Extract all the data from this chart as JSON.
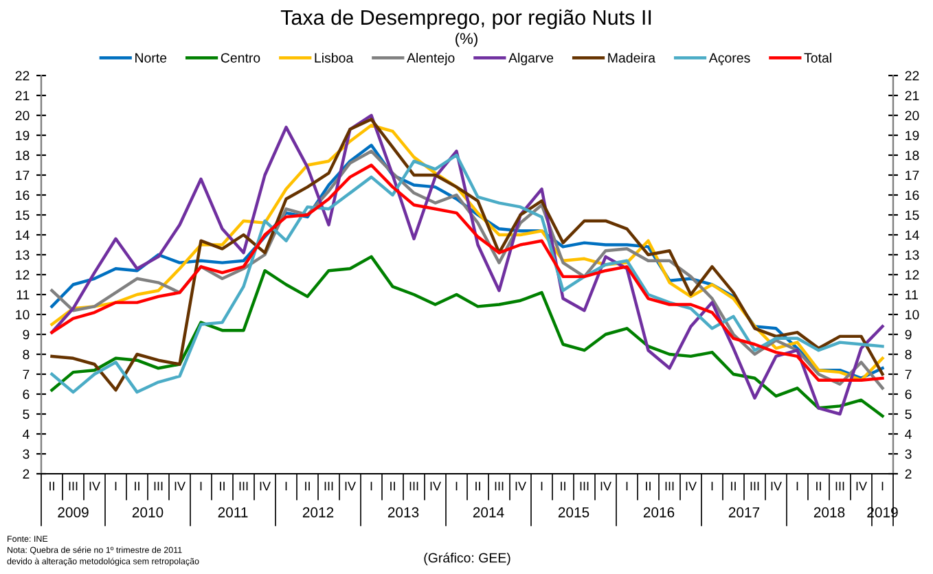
{
  "chart_data": {
    "type": "line",
    "title": "Taxa de Desemprego, por região Nuts II",
    "subtitle": "(%)",
    "categories": [
      "II",
      "III",
      "IV",
      "I",
      "II",
      "III",
      "IV",
      "I",
      "II",
      "III",
      "IV",
      "I",
      "II",
      "III",
      "IV",
      "I",
      "II",
      "III",
      "IV",
      "I",
      "II",
      "III",
      "IV",
      "I",
      "II",
      "III",
      "IV",
      "I",
      "II",
      "III",
      "IV",
      "I",
      "II",
      "III",
      "IV",
      "I",
      "II",
      "III",
      "IV",
      "I"
    ],
    "series": [
      {
        "name": "Norte",
        "color": "#0070c0",
        "values": [
          10.4,
          11.5,
          11.8,
          12.3,
          12.2,
          13.0,
          12.6,
          12.7,
          12.6,
          12.7,
          13.9,
          15.1,
          14.9,
          16.5,
          17.7,
          18.5,
          17.0,
          16.5,
          16.4,
          15.8,
          15.0,
          14.3,
          14.2,
          14.2,
          13.4,
          13.6,
          13.5,
          13.5,
          13.4,
          11.7,
          11.8,
          11.5,
          10.9,
          9.4,
          9.3,
          8.3,
          7.2,
          7.2,
          6.8,
          7.3
        ]
      },
      {
        "name": "Centro",
        "color": "#008000",
        "values": [
          6.2,
          7.1,
          7.2,
          7.8,
          7.7,
          7.3,
          7.5,
          9.6,
          9.2,
          9.2,
          12.2,
          11.5,
          10.9,
          12.2,
          12.3,
          12.9,
          11.4,
          11.0,
          10.5,
          11.0,
          10.4,
          10.5,
          10.7,
          11.1,
          8.5,
          8.2,
          9.0,
          9.3,
          8.4,
          8.0,
          7.9,
          8.1,
          7.0,
          6.8,
          5.9,
          6.3,
          5.3,
          5.4,
          5.7,
          4.9
        ]
      },
      {
        "name": "Lisboa",
        "color": "#ffc000",
        "values": [
          9.5,
          10.3,
          10.4,
          10.6,
          11.0,
          11.2,
          12.3,
          13.5,
          13.5,
          14.7,
          14.6,
          16.3,
          17.5,
          17.7,
          18.7,
          19.5,
          19.2,
          17.9,
          17.1,
          16.4,
          15.1,
          14.0,
          14.0,
          14.2,
          12.7,
          12.8,
          12.5,
          12.6,
          13.7,
          11.6,
          10.9,
          11.5,
          10.8,
          9.4,
          8.3,
          8.6,
          7.2,
          7.1,
          6.7,
          7.8
        ]
      },
      {
        "name": "Alentejo",
        "color": "#808080",
        "values": [
          11.2,
          10.2,
          10.4,
          11.1,
          11.8,
          11.6,
          11.1,
          12.4,
          11.8,
          12.3,
          13.0,
          15.3,
          15.0,
          16.2,
          17.6,
          18.2,
          17.1,
          16.1,
          15.6,
          16.0,
          14.6,
          12.6,
          14.6,
          15.5,
          12.6,
          11.9,
          13.2,
          13.3,
          12.7,
          12.7,
          11.9,
          10.8,
          9.0,
          8.0,
          8.7,
          8.2,
          7.0,
          6.5,
          7.6,
          6.3
        ]
      },
      {
        "name": "Algarve",
        "color": "#7030a0",
        "values": [
          9.1,
          10.3,
          12.1,
          13.8,
          12.3,
          12.9,
          14.5,
          16.8,
          14.3,
          13.1,
          17.0,
          19.4,
          17.4,
          14.5,
          19.3,
          20.0,
          17.0,
          13.8,
          16.9,
          18.2,
          13.5,
          11.2,
          15.0,
          16.3,
          10.8,
          10.2,
          12.9,
          12.3,
          8.2,
          7.3,
          9.4,
          10.6,
          8.3,
          5.8,
          7.9,
          8.2,
          5.3,
          5.0,
          8.3,
          9.4
        ]
      },
      {
        "name": "Madeira",
        "color": "#663300",
        "values": [
          7.9,
          7.8,
          7.5,
          6.2,
          8.0,
          7.7,
          7.5,
          13.7,
          13.3,
          14.0,
          13.1,
          15.8,
          16.4,
          17.1,
          19.3,
          19.8,
          18.4,
          17.0,
          17.0,
          16.4,
          15.7,
          13.1,
          15.0,
          15.7,
          13.6,
          14.7,
          14.7,
          14.3,
          13.0,
          13.2,
          11.0,
          12.4,
          11.1,
          9.3,
          8.9,
          9.1,
          8.3,
          8.9,
          8.9,
          7.0
        ]
      },
      {
        "name": "Açores",
        "color": "#4bacc6",
        "values": [
          7.0,
          6.1,
          7.0,
          7.6,
          6.1,
          6.6,
          6.9,
          9.5,
          9.6,
          11.4,
          14.7,
          13.7,
          15.4,
          15.3,
          16.1,
          16.9,
          16.0,
          17.7,
          17.3,
          18.0,
          15.9,
          15.6,
          15.4,
          14.9,
          11.2,
          11.9,
          12.5,
          12.7,
          11.0,
          10.6,
          10.3,
          9.3,
          9.9,
          8.2,
          8.8,
          8.8,
          8.2,
          8.6,
          8.5,
          8.4
        ]
      },
      {
        "name": "Total",
        "color": "#ff0000",
        "values": [
          9.1,
          9.8,
          10.1,
          10.6,
          10.6,
          10.9,
          11.1,
          12.4,
          12.1,
          12.4,
          14.0,
          14.9,
          15.0,
          15.8,
          16.9,
          17.5,
          16.4,
          15.5,
          15.3,
          15.1,
          13.9,
          13.1,
          13.5,
          13.7,
          11.9,
          11.9,
          12.2,
          12.4,
          10.8,
          10.5,
          10.5,
          10.1,
          8.8,
          8.5,
          8.1,
          7.9,
          6.7,
          6.7,
          6.7,
          6.8
        ]
      }
    ],
    "ylim": [
      2,
      22
    ],
    "yticks": [
      2,
      3,
      4,
      5,
      6,
      7,
      8,
      9,
      10,
      11,
      12,
      13,
      14,
      15,
      16,
      17,
      18,
      19,
      20,
      21,
      22
    ],
    "y2lim": [
      2,
      22
    ],
    "y2ticks": [
      2,
      3,
      4,
      5,
      6,
      7,
      8,
      9,
      10,
      11,
      12,
      13,
      14,
      15,
      16,
      17,
      18,
      19,
      20,
      21,
      22
    ],
    "legend": "top",
    "grid": false,
    "marker": "none",
    "line_style": "solid",
    "annotations": [
      "2009",
      "2010",
      "2011",
      "2012",
      "2013",
      "2014",
      "2015",
      "2016",
      "2017",
      "2018",
      "2019",
      "Fonte: INE\nNota: Quebra de série no 1º trimestre de 2011\ndevido à alteração metodológica sem retropolação",
      "(Gráfico: GEE)"
    ]
  }
}
